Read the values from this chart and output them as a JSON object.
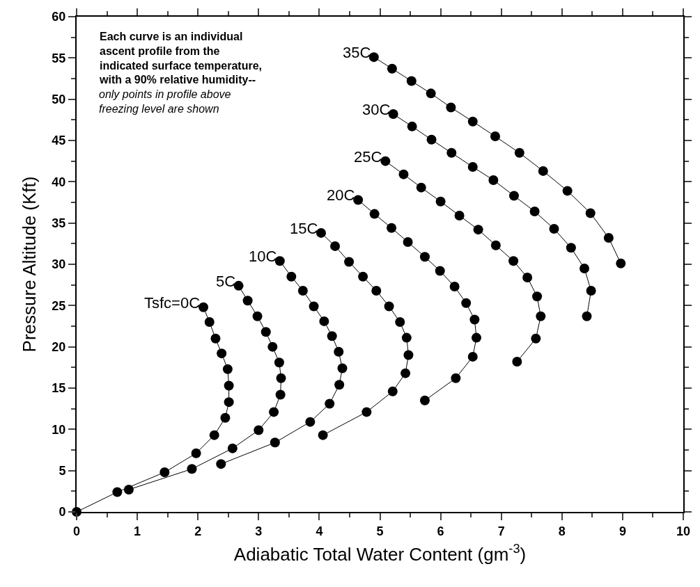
{
  "chart_data": {
    "type": "line",
    "xlabel": "Adiabatic Total Water Content (gm$^{-3}$)",
    "ylabel": "Pressure Altitude (Kft)",
    "xlim": [
      0,
      10
    ],
    "xticks": [
      0,
      1,
      2,
      3,
      4,
      5,
      6,
      7,
      8,
      9,
      10
    ],
    "ylim": [
      0,
      60
    ],
    "yticks": [
      0,
      5,
      10,
      15,
      20,
      25,
      30,
      35,
      40,
      45,
      50,
      55,
      60
    ],
    "legend": false,
    "marker": "circle",
    "line_style": "solid",
    "annotations": [
      "Each curve is an individual\nascent profile from the\nindicated surface temperature,\nwith a 90% relative humidity--",
      "only points in profile above\nfreezing level are shown"
    ],
    "series": [
      {
        "name": "Tsfc=0C",
        "color": "#000000",
        "x": [
          2.09,
          2.19,
          2.29,
          2.39,
          2.49,
          2.51,
          2.51,
          2.45,
          2.27,
          1.97,
          1.45,
          0.67,
          0
        ],
        "values": [
          24.8,
          23.0,
          21.0,
          19.2,
          17.3,
          15.3,
          13.3,
          11.4,
          9.3,
          7.1,
          4.8,
          2.4,
          0
        ]
      },
      {
        "name": "5C",
        "color": "#000000",
        "x": [
          2.67,
          2.82,
          2.98,
          3.12,
          3.23,
          3.34,
          3.37,
          3.36,
          3.25,
          3.0,
          2.57,
          1.9,
          0.86
        ],
        "values": [
          27.4,
          25.6,
          23.7,
          21.8,
          20.0,
          18.1,
          16.2,
          14.2,
          12.1,
          9.9,
          7.7,
          5.2,
          2.7
        ]
      },
      {
        "name": "10C",
        "color": "#000000",
        "x": [
          3.35,
          3.54,
          3.73,
          3.91,
          4.08,
          4.21,
          4.32,
          4.38,
          4.33,
          4.17,
          3.85,
          3.27,
          2.38
        ],
        "values": [
          30.4,
          28.5,
          26.8,
          24.9,
          23.1,
          21.3,
          19.4,
          17.4,
          15.4,
          13.1,
          10.9,
          8.4,
          5.8
        ]
      },
      {
        "name": "15C",
        "color": "#000000",
        "x": [
          4.03,
          4.26,
          4.49,
          4.72,
          4.94,
          5.15,
          5.33,
          5.44,
          5.47,
          5.42,
          5.21,
          4.78,
          4.06
        ],
        "values": [
          33.8,
          32.2,
          30.3,
          28.5,
          26.8,
          24.9,
          23.0,
          21.1,
          19.0,
          16.8,
          14.6,
          12.1,
          9.3
        ]
      },
      {
        "name": "20C",
        "color": "#000000",
        "x": [
          4.64,
          4.91,
          5.19,
          5.46,
          5.74,
          5.99,
          6.23,
          6.42,
          6.56,
          6.59,
          6.53,
          6.25,
          5.74
        ],
        "values": [
          37.8,
          36.1,
          34.4,
          32.7,
          30.9,
          29.2,
          27.3,
          25.3,
          23.3,
          21.1,
          18.8,
          16.2,
          13.5
        ]
      },
      {
        "name": "25C",
        "color": "#000000",
        "x": [
          5.09,
          5.39,
          5.68,
          6.0,
          6.31,
          6.62,
          6.91,
          7.2,
          7.43,
          7.59,
          7.65,
          7.57,
          7.26
        ],
        "values": [
          42.5,
          40.9,
          39.3,
          37.6,
          35.9,
          34.2,
          32.3,
          30.4,
          28.4,
          26.1,
          23.7,
          21.0,
          18.2
        ]
      },
      {
        "name": "30C",
        "color": "#000000",
        "x": [
          5.22,
          5.53,
          5.85,
          6.18,
          6.53,
          6.87,
          7.21,
          7.55,
          7.87,
          8.15,
          8.37,
          8.48,
          8.41
        ],
        "values": [
          48.2,
          46.7,
          45.1,
          43.5,
          41.8,
          40.2,
          38.3,
          36.4,
          34.3,
          32.0,
          29.5,
          26.8,
          23.7
        ]
      },
      {
        "name": "35C",
        "color": "#000000",
        "x": [
          4.9,
          5.2,
          5.52,
          5.84,
          6.17,
          6.53,
          6.9,
          7.3,
          7.69,
          8.09,
          8.47,
          8.77,
          8.97
        ],
        "values": [
          55.1,
          53.7,
          52.2,
          50.7,
          49.0,
          47.3,
          45.5,
          43.5,
          41.3,
          38.9,
          36.2,
          33.2,
          30.1
        ]
      }
    ]
  }
}
